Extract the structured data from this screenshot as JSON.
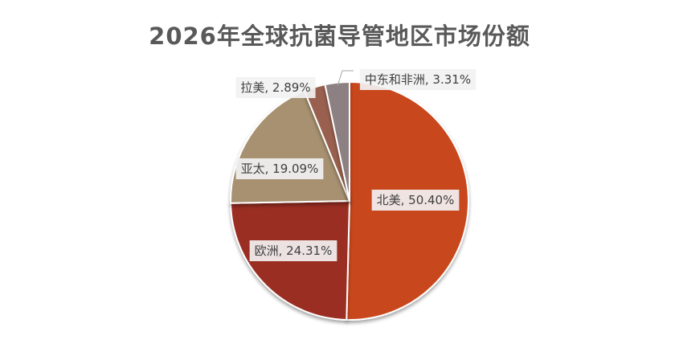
{
  "chart_data": {
    "type": "pie",
    "title": "2026年全球抗菌导管地区市场份额",
    "categories": [
      "北美",
      "欧洲",
      "亚太",
      "拉美",
      "中东和非洲"
    ],
    "values": [
      50.4,
      24.31,
      19.09,
      2.89,
      3.31
    ],
    "labels": [
      "北美, 50.40%",
      "欧洲, 24.31%",
      "亚太, 19.09%",
      "拉美, 2.89%",
      "中东和非洲, 3.31%"
    ],
    "colors": [
      "#c9461b",
      "#9a2f24",
      "#a7916f",
      "#99604f",
      "#8d8083"
    ],
    "legend": "none"
  }
}
